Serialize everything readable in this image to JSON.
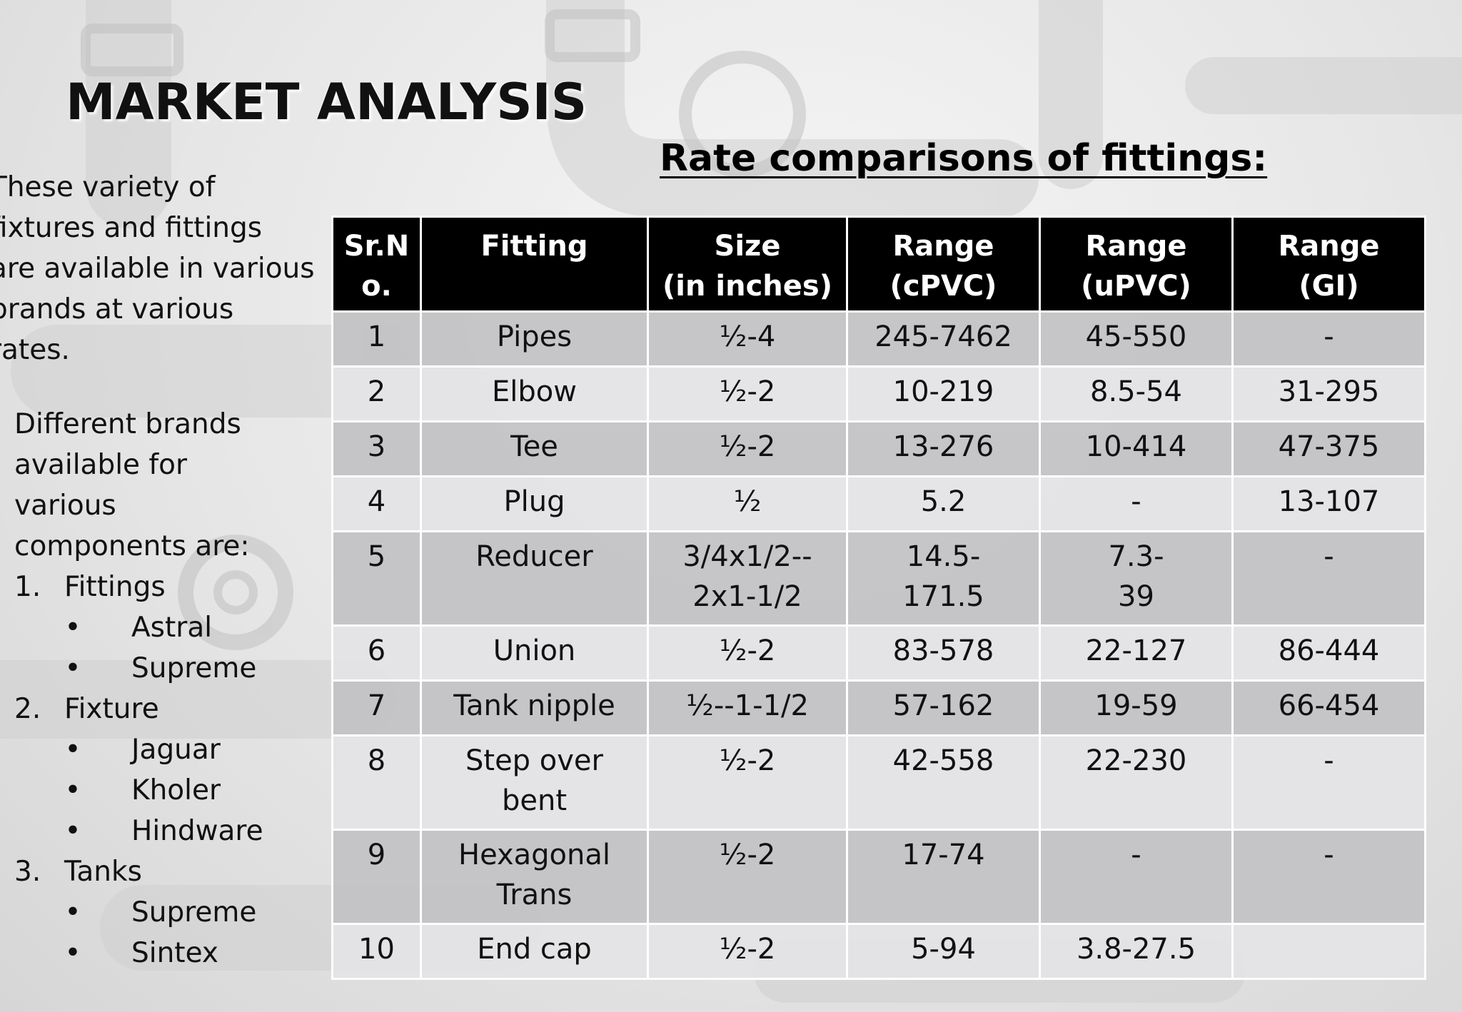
{
  "title": "MARKET ANALYSIS",
  "subtitle": "Rate comparisons of fittings:",
  "intro": [
    "These variety of",
    "fixtures and fittings",
    "are available in various",
    "brands at various rates."
  ],
  "brands": {
    "heading": [
      "Different brands",
      "available for",
      "various",
      "components are:"
    ],
    "categories": [
      {
        "num": "1.",
        "name": "Fittings",
        "items": [
          "Astral",
          "Supreme"
        ]
      },
      {
        "num": "2.",
        "name": "Fixture",
        "items": [
          "Jaguar",
          "Kholer",
          "Hindware"
        ]
      },
      {
        "num": "3.",
        "name": "Tanks",
        "items": [
          "Supreme",
          "Sintex"
        ]
      }
    ],
    "bullet": "•"
  },
  "table": {
    "headers": [
      [
        "Sr.N",
        "o."
      ],
      [
        "Fitting",
        ""
      ],
      [
        "Size",
        "(in inches)"
      ],
      [
        "Range",
        "(cPVC)"
      ],
      [
        "Range",
        "(uPVC)"
      ],
      [
        "Range",
        "(GI)"
      ]
    ],
    "rows": [
      {
        "sr": "1",
        "fitting": [
          "Pipes"
        ],
        "size": [
          "½-4"
        ],
        "cpvc": [
          "245-7462"
        ],
        "upvc": [
          "45-550"
        ],
        "gi": [
          "-"
        ]
      },
      {
        "sr": "2",
        "fitting": [
          "Elbow"
        ],
        "size": [
          "½-2"
        ],
        "cpvc": [
          "10-219"
        ],
        "upvc": [
          "8.5-54"
        ],
        "gi": [
          "31-295"
        ]
      },
      {
        "sr": "3",
        "fitting": [
          "Tee"
        ],
        "size": [
          "½-2"
        ],
        "cpvc": [
          "13-276"
        ],
        "upvc": [
          "10-414"
        ],
        "gi": [
          "47-375"
        ]
      },
      {
        "sr": "4",
        "fitting": [
          "Plug"
        ],
        "size": [
          "½"
        ],
        "cpvc": [
          "5.2"
        ],
        "upvc": [
          "-"
        ],
        "gi": [
          "13-107"
        ]
      },
      {
        "sr": "5",
        "fitting": [
          "Reducer"
        ],
        "size": [
          "3/4x1/2--",
          "2x1-1/2"
        ],
        "cpvc": [
          "14.5-",
          "171.5"
        ],
        "upvc": [
          "7.3-",
          "39"
        ],
        "gi": [
          "-"
        ]
      },
      {
        "sr": "6",
        "fitting": [
          "Union"
        ],
        "size": [
          "½-2"
        ],
        "cpvc": [
          "83-578"
        ],
        "upvc": [
          "22-127"
        ],
        "gi": [
          "86-444"
        ]
      },
      {
        "sr": "7",
        "fitting": [
          "Tank nipple"
        ],
        "size": [
          "½--1-1/2"
        ],
        "cpvc": [
          "57-162"
        ],
        "upvc": [
          "19-59"
        ],
        "gi": [
          "66-454"
        ]
      },
      {
        "sr": "8",
        "fitting": [
          "Step over",
          "bent"
        ],
        "size": [
          "½-2"
        ],
        "cpvc": [
          "42-558"
        ],
        "upvc": [
          "22-230"
        ],
        "gi": [
          "-"
        ]
      },
      {
        "sr": "9",
        "fitting": [
          "Hexagonal",
          "Trans"
        ],
        "size": [
          "½-2"
        ],
        "cpvc": [
          "17-74"
        ],
        "upvc": [
          "-"
        ],
        "gi": [
          "-"
        ]
      },
      {
        "sr": "10",
        "fitting": [
          "End cap"
        ],
        "size": [
          "½-2"
        ],
        "cpvc": [
          "5-94"
        ],
        "upvc": [
          "3.8-27.5"
        ],
        "gi": [
          ""
        ]
      }
    ]
  },
  "colors": {
    "header_bg": "#000000",
    "header_text": "#ffffff",
    "row_dark": "#c3c3c5",
    "row_light": "#e4e4e6",
    "background": "#e8e8e8"
  }
}
